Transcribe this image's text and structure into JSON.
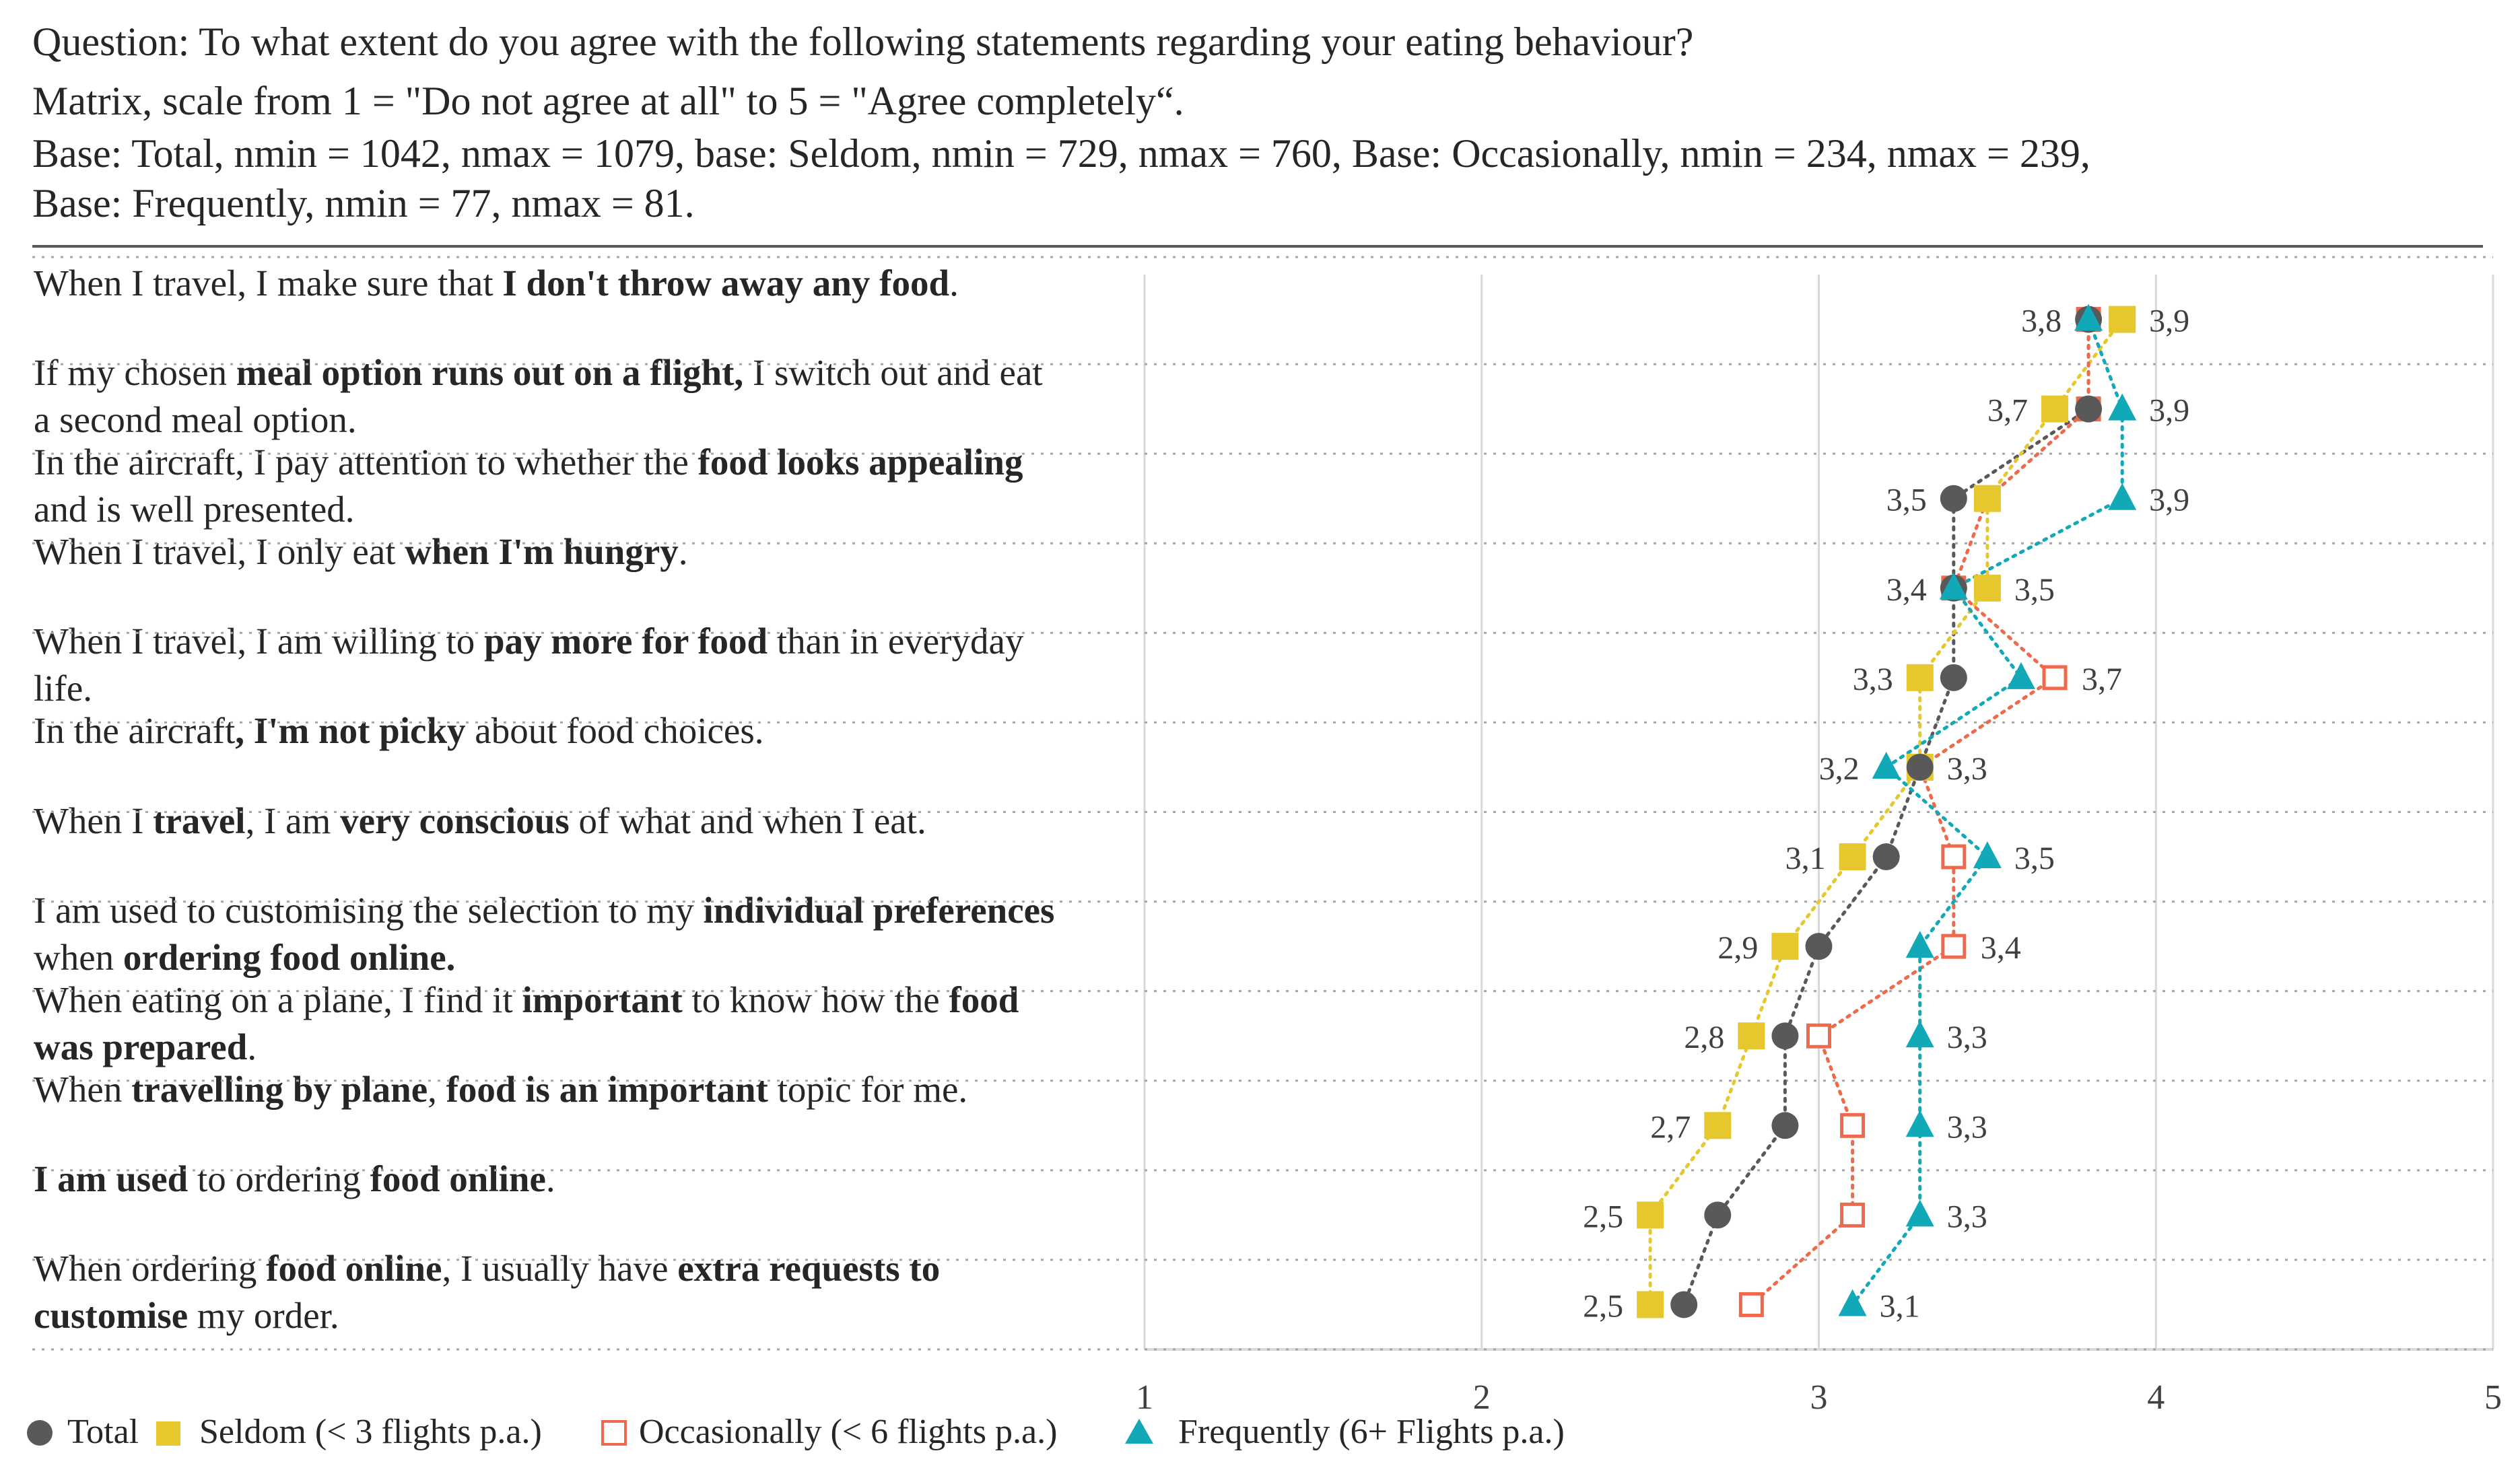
{
  "header": {
    "line1": "Question: To what extent do you agree with the following  statements regarding your eating behaviour?",
    "line2": "Matrix, scale from 1 = \"Do not agree at all\" to 5 = \"Agree completely“.",
    "line3": "Base: Total, nmin = 1042, nmax = 1079, base: Seldom, nmin = 729, nmax = 760, Base: Occasionally, nmin = 234, nmax = 239,",
    "line4": "Base: Frequently, nmin = 77, nmax = 81."
  },
  "colors": {
    "total": "#595959",
    "seldom": "#E6C72E",
    "occasionally": "#EF6A4C",
    "frequently": "#11A8B8",
    "grid": "#D9D9D9"
  },
  "chart_data": {
    "type": "scatter",
    "orientation": "horizontal-dot-plot",
    "xlim": [
      1,
      5
    ],
    "xticks": [
      "1",
      "2",
      "3",
      "4",
      "5"
    ],
    "grid": true,
    "legend_position": "bottom",
    "categories": [
      [
        {
          "t": "When I travel, I make sure that "
        },
        {
          "t": "I don't throw away any food",
          "b": true
        },
        {
          "t": "."
        }
      ],
      [
        {
          "t": " If my chosen "
        },
        {
          "t": "meal option runs out on a flight,",
          "b": true
        },
        {
          "t": " I switch out and eat a second meal option."
        }
      ],
      [
        {
          "t": "In the aircraft, I pay attention to whether the "
        },
        {
          "t": "food looks appealing",
          "b": true
        },
        {
          "t": " and is well presented."
        }
      ],
      [
        {
          "t": "When I travel, I only eat "
        },
        {
          "t": "when I'm hungry",
          "b": true
        },
        {
          "t": "."
        }
      ],
      [
        {
          "t": "When I travel, I am willing to "
        },
        {
          "t": "pay more for food",
          "b": true
        },
        {
          "t": " than in everyday life."
        }
      ],
      [
        {
          "t": "In the aircraft"
        },
        {
          "t": ", I'm not picky",
          "b": true
        },
        {
          "t": " about food choices."
        }
      ],
      [
        {
          "t": "When I "
        },
        {
          "t": "travel",
          "b": true
        },
        {
          "t": ", I am "
        },
        {
          "t": "very conscious",
          "b": true
        },
        {
          "t": " of what and when I eat."
        }
      ],
      [
        {
          "t": " I am used to customising the selection to my "
        },
        {
          "t": "individual preferences",
          "b": true
        },
        {
          "t": " when "
        },
        {
          "t": "ordering food online.",
          "b": true
        }
      ],
      [
        {
          "t": "When eating on a plane, I find it "
        },
        {
          "t": "important",
          "b": true
        },
        {
          "t": " to know how the "
        },
        {
          "t": "food was prepared",
          "b": true
        },
        {
          "t": "."
        }
      ],
      [
        {
          "t": "When "
        },
        {
          "t": "travelling by plane",
          "b": true
        },
        {
          "t": ", "
        },
        {
          "t": "food is an important",
          "b": true
        },
        {
          "t": " topic for me."
        }
      ],
      [
        {
          "t": "I am used",
          "b": true
        },
        {
          "t": " to ordering "
        },
        {
          "t": "food online",
          "b": true
        },
        {
          "t": "."
        }
      ],
      [
        {
          "t": "When ordering "
        },
        {
          "t": "food online",
          "b": true
        },
        {
          "t": ",  I usually have "
        },
        {
          "t": "extra requests to customise",
          "b": true
        },
        {
          "t": " my order."
        }
      ]
    ],
    "series": [
      {
        "key": "total",
        "name": "Total",
        "marker": "circle",
        "values": [
          3.8,
          3.8,
          3.4,
          3.4,
          3.4,
          3.3,
          3.2,
          3.0,
          2.9,
          2.9,
          2.7,
          2.6
        ]
      },
      {
        "key": "seldom",
        "name": "Seldom (< 3 flights p.a.)",
        "marker": "square-filled",
        "values": [
          3.9,
          3.7,
          3.5,
          3.5,
          3.3,
          3.3,
          3.1,
          2.9,
          2.8,
          2.7,
          2.5,
          2.5
        ]
      },
      {
        "key": "occasionally",
        "name": "Occasionally (< 6 flights p.a.)",
        "marker": "square-open",
        "values": [
          3.8,
          3.8,
          3.5,
          3.4,
          3.7,
          3.3,
          3.4,
          3.4,
          3.0,
          3.1,
          3.1,
          2.8
        ]
      },
      {
        "key": "frequently",
        "name": "Frequently (6+ Flights p.a.)",
        "marker": "triangle",
        "values": [
          3.8,
          3.9,
          3.9,
          3.4,
          3.6,
          3.2,
          3.5,
          3.3,
          3.3,
          3.3,
          3.3,
          3.1
        ]
      }
    ],
    "data_labels": [
      {
        "left": "3,8",
        "right": "3,9"
      },
      {
        "left": "3,7",
        "right": "3,9"
      },
      {
        "left": "3,5",
        "right": "3,9"
      },
      {
        "left": "3,4",
        "right": "3,5"
      },
      {
        "left": "3,3",
        "right": "3,7"
      },
      {
        "left": "3,2",
        "right": "3,3"
      },
      {
        "left": "3,1",
        "right": "3,5"
      },
      {
        "left": "2,9",
        "right": "3,4"
      },
      {
        "left": "2,8",
        "right": "3,3"
      },
      {
        "left": "2,7",
        "right": "3,3"
      },
      {
        "left": "2,5",
        "right": "3,3"
      },
      {
        "left": "2,5",
        "right": "3,1"
      }
    ]
  }
}
